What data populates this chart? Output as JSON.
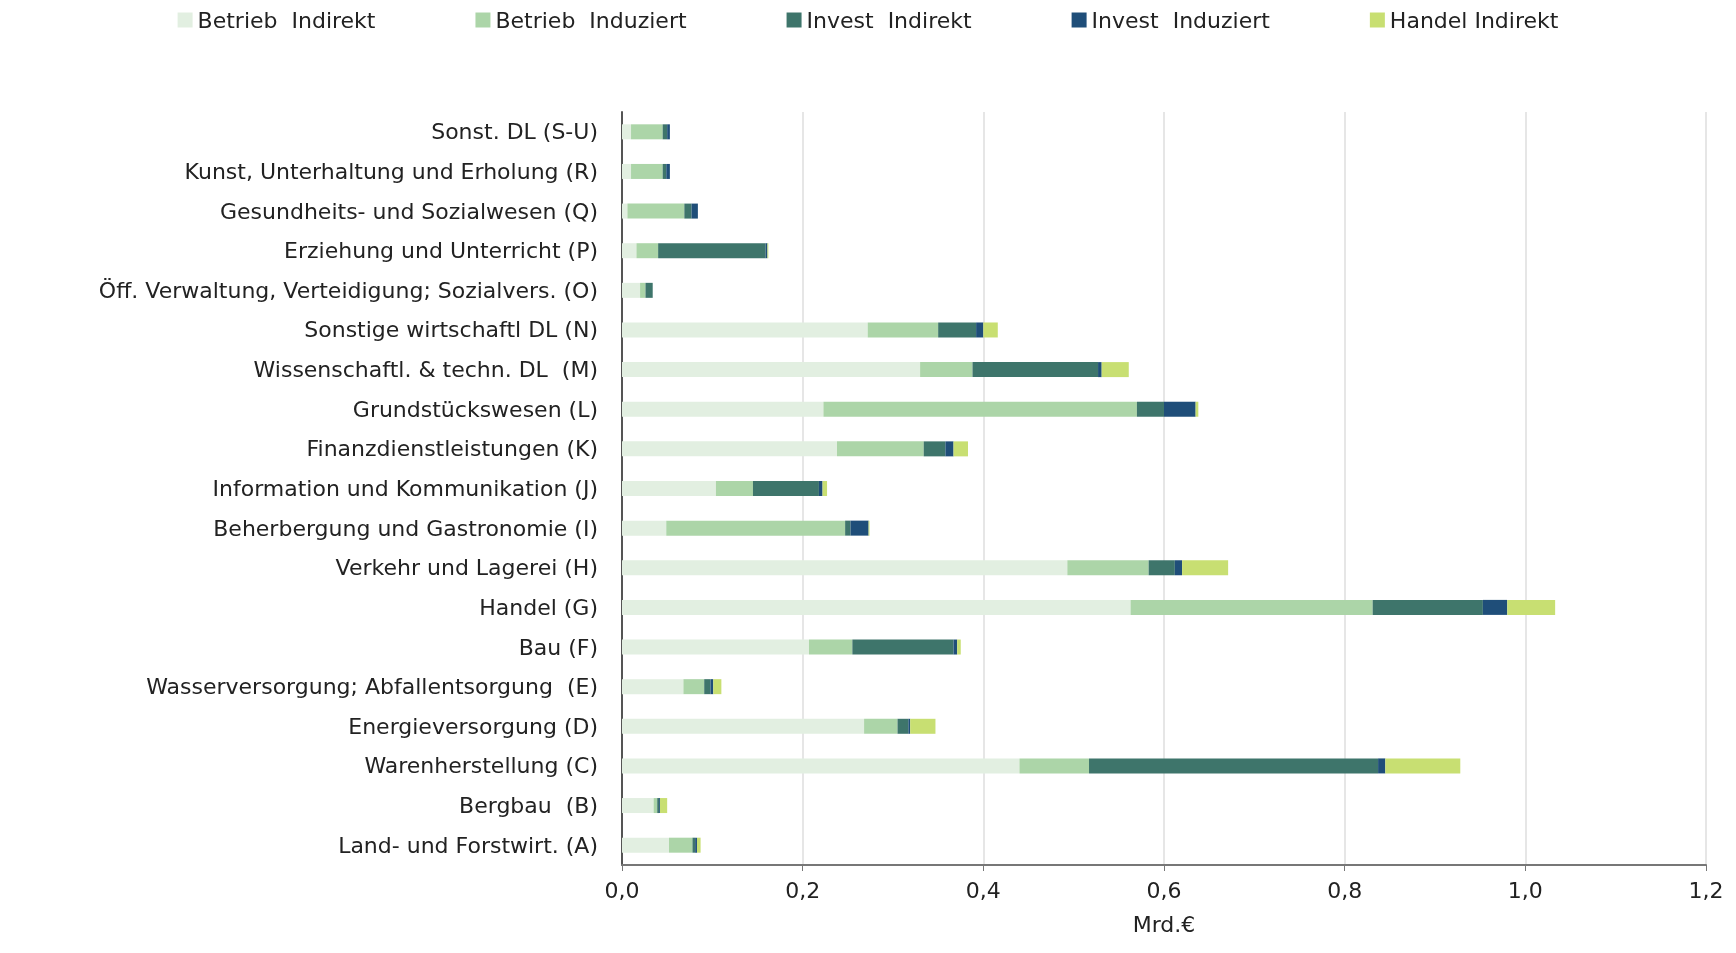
{
  "chart_data": {
    "type": "bar",
    "orientation": "horizontal",
    "stacked": true,
    "xlabel": "Mrd.€",
    "legend": "top",
    "grid": "x",
    "categories": [
      "Sonst. DL (S-U)",
      "Kunst, Unterhaltung und Erholung (R)",
      "Gesundheits- und Sozialwesen (Q)",
      "Erziehung und Unterricht (P)",
      "Öff. Verwaltung, Verteidigung; Sozialvers. (O)",
      "Sonstige wirtschaftl DL (N)",
      "Wissenschaftl. & techn. DL  (M)",
      "Grundstückswesen (L)",
      "Finanzdienstleistungen (K)",
      "Information und Kommunikation (J)",
      "Beherbergung und Gastronomie (I)",
      "Verkehr und Lagerei (H)",
      "Handel (G)",
      "Bau (F)",
      "Wasserversorgung; Abfallentsorgung  (E)",
      "Energieversorgung (D)",
      "Warenherstellung (C)",
      "Bergbau  (B)",
      "Land- und Forstwirt. (A)"
    ],
    "series": [
      {
        "name": "Betrieb  Indirekt",
        "color": "#e2efe1",
        "values": [
          0.01,
          0.01,
          0.006,
          0.016,
          0.02,
          0.272,
          0.33,
          0.223,
          0.238,
          0.104,
          0.049,
          0.493,
          0.563,
          0.207,
          0.068,
          0.268,
          0.44,
          0.035,
          0.052
        ]
      },
      {
        "name": "Betrieb  Induziert",
        "color": "#acd5a8",
        "values": [
          0.035,
          0.035,
          0.063,
          0.024,
          0.006,
          0.078,
          0.058,
          0.347,
          0.096,
          0.041,
          0.198,
          0.09,
          0.268,
          0.048,
          0.023,
          0.037,
          0.077,
          0.004,
          0.026
        ]
      },
      {
        "name": "Invest  Indirekt",
        "color": "#3e756b",
        "values": [
          0.005,
          0.004,
          0.008,
          0.119,
          0.008,
          0.042,
          0.139,
          0.03,
          0.024,
          0.073,
          0.006,
          0.029,
          0.122,
          0.112,
          0.007,
          0.012,
          0.32,
          0.002,
          0.003
        ]
      },
      {
        "name": "Invest  Induziert",
        "color": "#1f4e79",
        "values": [
          0.003,
          0.004,
          0.007,
          0.002,
          0,
          0.008,
          0.004,
          0.035,
          0.009,
          0.004,
          0.02,
          0.008,
          0.027,
          0.004,
          0.003,
          0.002,
          0.008,
          0.001,
          0.002
        ]
      },
      {
        "name": "Handel Indirekt",
        "color": "#c8df72",
        "values": [
          0,
          0,
          0,
          0.001,
          0,
          0.016,
          0.03,
          0.003,
          0.016,
          0.005,
          0.001,
          0.051,
          0.053,
          0.004,
          0.009,
          0.028,
          0.083,
          0.008,
          0.004
        ]
      }
    ],
    "xlim": [
      0,
      1.2
    ],
    "xticks": [
      {
        "value": 0,
        "label": "0,0"
      },
      {
        "value": 0.2,
        "label": "0,2"
      },
      {
        "value": 0.4,
        "label": "0,4"
      },
      {
        "value": 0.6,
        "label": "0,6"
      },
      {
        "value": 0.8,
        "label": "0,8"
      },
      {
        "value": 1.0,
        "label": "1,0"
      },
      {
        "value": 1.2,
        "label": "1,2"
      }
    ]
  }
}
